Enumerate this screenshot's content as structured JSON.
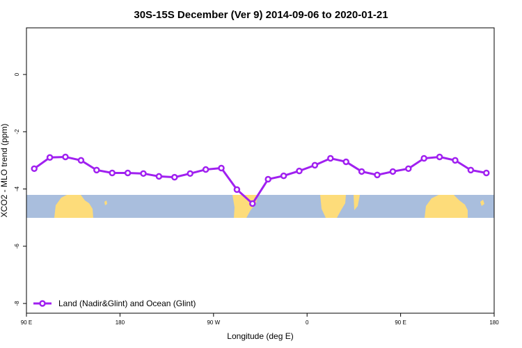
{
  "chart_data": {
    "type": "line",
    "title": "30S-15S December (Ver 9)   2014-09-06 to 2020-01-21",
    "x_label": "Longitude (deg E)",
    "y_label": "XCO2 - MLO trend (ppm)",
    "x": [
      97.5,
      112.5,
      127.5,
      142.5,
      157.5,
      172.5,
      187.5,
      202.5,
      217.5,
      232.5,
      247.5,
      262.5,
      277.5,
      292.5,
      307.5,
      322.5,
      337.5,
      352.5,
      367.5,
      382.5,
      397.5,
      412.5,
      427.5,
      442.5,
      457.5,
      472.5,
      487.5,
      502.5,
      517.5,
      532.5
    ],
    "series": [
      {
        "name": "Land (Nadir&Glint) and Ocean (Glint)",
        "color": "#a020f0",
        "values": [
          -3.29,
          -2.9,
          -2.88,
          -3.0,
          -3.34,
          -3.44,
          -3.44,
          -3.46,
          -3.56,
          -3.59,
          -3.46,
          -3.32,
          -3.27,
          -4.02,
          -4.51,
          -3.66,
          -3.54,
          -3.37,
          -3.17,
          -2.93,
          -3.05,
          -3.39,
          -3.51,
          -3.39,
          -3.29,
          -2.93,
          -2.88,
          -3.0,
          -3.34,
          -3.44
        ]
      }
    ],
    "xlim": [
      90,
      540
    ],
    "ylim": [
      -8.34,
      1.63
    ],
    "xticks": [
      {
        "value": 90,
        "label": "90 E"
      },
      180,
      {
        "value": 270,
        "label": "90 W"
      },
      {
        "value": 360,
        "label": "0"
      },
      {
        "value": 450,
        "label": "90 E"
      },
      {
        "value": 540,
        "label": "180"
      }
    ],
    "yticks": [
      -8,
      -6,
      -4,
      -2,
      0
    ],
    "legend": "bottom-left"
  }
}
